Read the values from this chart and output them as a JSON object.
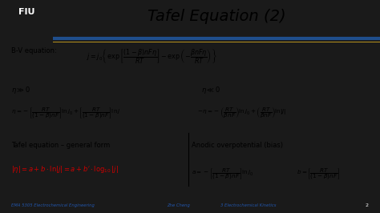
{
  "title": "Tafel Equation (2)",
  "bg_color": "#ffffff",
  "header_bg": "#f0f0f0",
  "blue_line_color": "#1F4E8C",
  "gold_line_color": "#C8A020",
  "title_color": "#000000",
  "title_fontsize": 14,
  "footer_text_left": "EMA 5305 Electrochemical Engineering",
  "footer_text_mid": "Zhe Cheng",
  "footer_text_right": "3 Electrochemical Kinetics",
  "footer_page": "2",
  "footer_color": "#2255AA",
  "bv_label": "B-V equation:",
  "bv_eq": "$j = j_0 \\left\\{ \\exp\\left[\\dfrac{(1-\\beta)nF\\eta}{RT}\\right] - \\exp\\left(-\\dfrac{\\beta nF\\eta}{RT}\\right) \\right\\}$",
  "eta_large_pos": "$\\eta \\gg 0$",
  "eta_large_neg": "$\\eta \\ll 0$",
  "eq_eta_pos": "$\\eta = -\\left[\\dfrac{RT}{(1-\\beta)nF}\\right]\\ln j_0 + \\left[\\dfrac{RT}{(1-\\beta)nF}\\right]\\ln j$",
  "eq_eta_neg": "$-\\eta = -\\left(\\dfrac{RT}{\\beta nF}\\right)\\ln j_0 + \\left(\\dfrac{RT}{\\beta nF}\\right)\\ln|j|$",
  "tafel_label": "Tafel equation – general form",
  "tafel_eq": "$|\\eta| = a + b \\cdot \\ln|j| = a + b' \\cdot \\log_{10}|j|$",
  "anodic_label": "Anodic overpotential (bias)",
  "anodic_a": "$a = -\\left[\\dfrac{RT}{(1-\\beta)nF}\\right]\\ln j_0$",
  "anodic_b": "$b = \\left[\\dfrac{RT}{(1-\\beta)nF}\\right]$",
  "tafel_eq_color": "#CC0000",
  "text_color": "#000000",
  "logo_placeholder": true
}
